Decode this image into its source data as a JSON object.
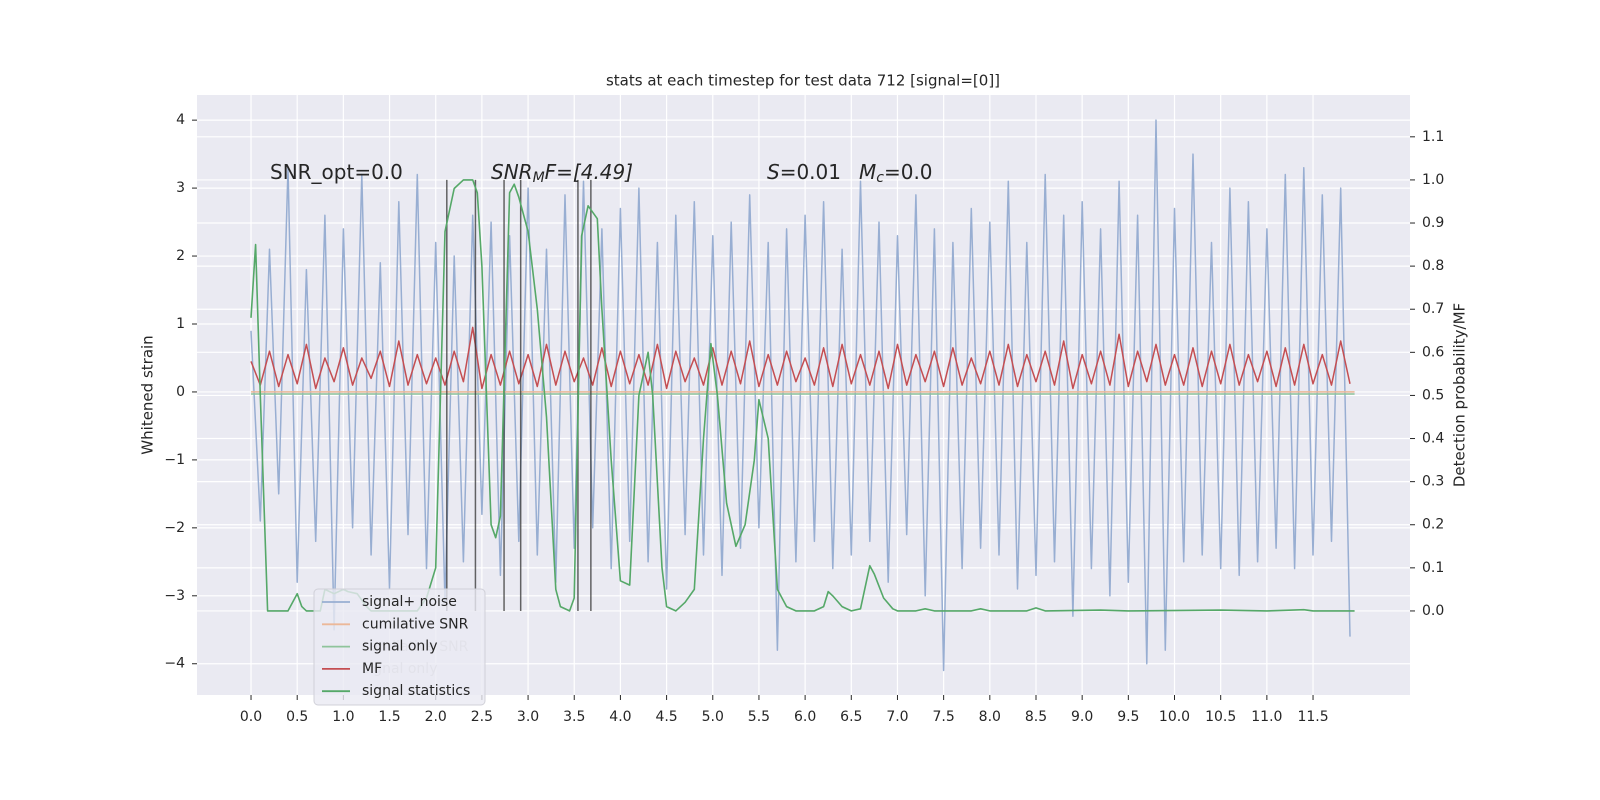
{
  "chart_data": {
    "type": "line",
    "title": "stats at each timestep for test data 712 [signal=[0]]",
    "ylabel": "Whitened strain",
    "y2label": "Detection probability/MF",
    "annotations": [
      [
        "SNR_opt=0.0"
      ],
      [
        "SNR",
        "M",
        "F=[4.49]"
      ],
      [
        "S",
        "=0.01"
      ],
      [
        "M",
        "c",
        "=0.0"
      ]
    ],
    "xlim": [
      -0.585,
      12.55
    ],
    "ylim": [
      -4.46,
      4.37
    ],
    "y2lim": [
      -0.195,
      1.197
    ],
    "xticks": [
      {
        "value": 0,
        "label": "0.0"
      },
      0.5,
      {
        "value": 1,
        "label": "1.0"
      },
      1.5,
      {
        "value": 2,
        "label": "2.0"
      },
      2.5,
      {
        "value": 3,
        "label": "3.0"
      },
      3.5,
      {
        "value": 4,
        "label": "4.0"
      },
      4.5,
      {
        "value": 5,
        "label": "5.0"
      },
      5.5,
      {
        "value": 6,
        "label": "6.0"
      },
      6.5,
      {
        "value": 7,
        "label": "7.0"
      },
      7.5,
      {
        "value": 8,
        "label": "8.0"
      },
      8.5,
      {
        "value": 9,
        "label": "9.0"
      },
      9.5,
      {
        "value": 10,
        "label": "10.0"
      },
      10.5,
      {
        "value": 11,
        "label": "11.0"
      },
      11.5
    ],
    "yticks": [
      {
        "value": -4,
        "label": "−4"
      },
      {
        "value": -3,
        "label": "−3"
      },
      {
        "value": -2,
        "label": "−2"
      },
      {
        "value": -1,
        "label": "−1"
      },
      0,
      1,
      2,
      3,
      4
    ],
    "y2ticks": [
      {
        "value": 0,
        "label": "0.0"
      },
      0.1,
      0.2,
      0.3,
      0.4,
      0.5,
      0.6,
      0.7,
      0.8,
      0.9,
      {
        "value": 1,
        "label": "1.0"
      },
      1.1
    ],
    "grid": true,
    "legend_position": "lower left",
    "background_legend": [
      "cumilative SNR",
      "signal only"
    ],
    "x": [
      0,
      0.1,
      0.2,
      0.3,
      0.4,
      0.5,
      0.6,
      0.7,
      0.8,
      0.9,
      1,
      1.1,
      1.2,
      1.3,
      1.4,
      1.5,
      1.6,
      1.7,
      1.8,
      1.9,
      2,
      2.1,
      2.2,
      2.3,
      2.4,
      2.5,
      2.6,
      2.7,
      2.8,
      2.9,
      3,
      3.1,
      3.2,
      3.3,
      3.4,
      3.5,
      3.6,
      3.7,
      3.8,
      3.9,
      4,
      4.1,
      4.2,
      4.3,
      4.4,
      4.5,
      4.6,
      4.7,
      4.8,
      4.9,
      5,
      5.1,
      5.2,
      5.3,
      5.4,
      5.5,
      5.6,
      5.7,
      5.8,
      5.9,
      6,
      6.1,
      6.2,
      6.3,
      6.4,
      6.5,
      6.6,
      6.7,
      6.8,
      6.9,
      7,
      7.1,
      7.2,
      7.3,
      7.4,
      7.5,
      7.6,
      7.7,
      7.8,
      7.9,
      8,
      8.1,
      8.2,
      8.3,
      8.4,
      8.5,
      8.6,
      8.7,
      8.8,
      8.9,
      9,
      9.1,
      9.2,
      9.3,
      9.4,
      9.5,
      9.6,
      9.7,
      9.8,
      9.9,
      10,
      10.1,
      10.2,
      10.3,
      10.4,
      10.5,
      10.6,
      10.7,
      10.8,
      10.9,
      11,
      11.1,
      11.2,
      11.3,
      11.4,
      11.5,
      11.6,
      11.7,
      11.8,
      11.9
    ],
    "series": [
      {
        "name": "signal+ noise",
        "color": "#98aed2",
        "values": [
          0.9,
          -1.9,
          2.1,
          -1.5,
          3.3,
          -2.8,
          1.8,
          -2.2,
          2.6,
          -3.5,
          2.4,
          -2.0,
          3.2,
          -2.4,
          1.9,
          -2.9,
          2.8,
          -2.1,
          3.2,
          -2.6,
          2.2,
          -3.1,
          2.0,
          -2.5,
          2.6,
          -1.8,
          2.5,
          -2.7,
          2.3,
          -2.2,
          3.0,
          -2.4,
          2.1,
          -2.8,
          2.9,
          -2.3,
          3.1,
          -2.0,
          2.4,
          -2.6,
          2.7,
          -2.2,
          3.0,
          -2.5,
          2.2,
          -2.9,
          2.6,
          -2.1,
          2.8,
          -2.4,
          2.3,
          -2.7,
          2.5,
          -2.3,
          2.9,
          -2.0,
          2.2,
          -3.8,
          2.4,
          -2.5,
          2.6,
          -2.2,
          2.8,
          -2.6,
          2.1,
          -2.4,
          3.1,
          -2.2,
          2.5,
          -2.8,
          2.3,
          -2.1,
          2.9,
          -3.0,
          2.4,
          -4.1,
          2.2,
          -2.6,
          2.7,
          -2.3,
          2.5,
          -2.4,
          3.1,
          -2.9,
          2.2,
          -2.7,
          3.2,
          -2.5,
          2.6,
          -3.3,
          2.8,
          -2.6,
          2.4,
          -3.0,
          3.1,
          -2.8,
          2.6,
          -4.0,
          4.0,
          -3.8,
          2.7,
          -2.5,
          3.5,
          -2.4,
          2.2,
          -2.6,
          3.0,
          -2.7,
          2.8,
          -2.5,
          2.4,
          -2.3,
          3.2,
          -2.6,
          3.3,
          -2.4,
          2.9,
          -2.2,
          3.0,
          -3.6
        ]
      },
      {
        "name": "cumilative SNR",
        "color": "#ecb899",
        "x": [
          0,
          11.95
        ],
        "values": [
          0,
          0
        ]
      },
      {
        "name": "signal only",
        "color": "#8fc49b",
        "x": [
          0,
          11.95
        ],
        "values": [
          -0.03,
          -0.03
        ]
      },
      {
        "name": "MF",
        "color": "#c44e52",
        "values": [
          0.45,
          0.1,
          0.6,
          0.08,
          0.55,
          0.12,
          0.7,
          0.05,
          0.5,
          0.15,
          0.65,
          0.1,
          0.5,
          0.2,
          0.6,
          0.08,
          0.75,
          0.1,
          0.55,
          0.12,
          0.5,
          0.1,
          0.6,
          0.15,
          0.95,
          0.05,
          0.55,
          0.1,
          0.6,
          0.12,
          0.55,
          0.08,
          0.7,
          0.1,
          0.6,
          0.15,
          0.5,
          0.1,
          0.65,
          0.08,
          0.6,
          0.12,
          0.55,
          0.1,
          0.7,
          0.05,
          0.6,
          0.15,
          0.5,
          0.1,
          0.65,
          0.1,
          0.6,
          0.12,
          0.75,
          0.08,
          0.55,
          0.1,
          0.6,
          0.15,
          0.5,
          0.1,
          0.65,
          0.08,
          0.7,
          0.12,
          0.55,
          0.1,
          0.6,
          0.05,
          0.7,
          0.1,
          0.55,
          0.15,
          0.6,
          0.08,
          0.65,
          0.1,
          0.5,
          0.12,
          0.6,
          0.1,
          0.7,
          0.08,
          0.55,
          0.15,
          0.6,
          0.1,
          0.75,
          0.05,
          0.55,
          0.12,
          0.6,
          0.1,
          0.85,
          0.08,
          0.6,
          0.15,
          0.7,
          0.1,
          0.55,
          0.1,
          0.65,
          0.08,
          0.6,
          0.12,
          0.7,
          0.1,
          0.55,
          0.15,
          0.6,
          0.08,
          0.65,
          0.1,
          0.7,
          0.12,
          0.55,
          0.1,
          0.75,
          0.12
        ]
      },
      {
        "name": "signal statistics",
        "color": "#55a868",
        "axis": "y2",
        "x": [
          0,
          0.05,
          0.1,
          0.18,
          0.3,
          0.4,
          0.5,
          0.55,
          0.6,
          0.75,
          0.8,
          0.9,
          1.0,
          1.05,
          1.15,
          1.25,
          1.3,
          1.8,
          1.9,
          2.0,
          2.1,
          2.2,
          2.3,
          2.4,
          2.45,
          2.5,
          2.55,
          2.6,
          2.65,
          2.7,
          2.75,
          2.8,
          2.85,
          2.9,
          3.0,
          3.1,
          3.2,
          3.3,
          3.35,
          3.45,
          3.5,
          3.58,
          3.65,
          3.75,
          3.8,
          3.9,
          4.0,
          4.1,
          4.2,
          4.3,
          4.35,
          4.45,
          4.5,
          4.6,
          4.7,
          4.8,
          4.9,
          4.98,
          5.05,
          5.15,
          5.25,
          5.35,
          5.45,
          5.5,
          5.6,
          5.7,
          5.8,
          5.9,
          6.1,
          6.2,
          6.25,
          6.3,
          6.4,
          6.5,
          6.6,
          6.7,
          6.75,
          6.85,
          6.95,
          7.0,
          7.2,
          7.3,
          7.4,
          7.8,
          7.9,
          8.0,
          8.4,
          8.5,
          8.6,
          9.2,
          9.5,
          10.5,
          11.0,
          11.4,
          11.5,
          11.95
        ],
        "values": [
          0.68,
          0.85,
          0.5,
          0.0,
          0.0,
          0.0,
          0.04,
          0.01,
          0.0,
          0.0,
          0.05,
          0.04,
          0.05,
          0.045,
          0.04,
          0.01,
          0.0,
          0.0,
          0.03,
          0.1,
          0.88,
          0.98,
          1.0,
          1.0,
          0.97,
          0.8,
          0.5,
          0.2,
          0.17,
          0.22,
          0.6,
          0.97,
          0.99,
          0.96,
          0.88,
          0.7,
          0.45,
          0.05,
          0.01,
          0.0,
          0.03,
          0.87,
          0.94,
          0.91,
          0.7,
          0.35,
          0.07,
          0.06,
          0.5,
          0.6,
          0.5,
          0.1,
          0.01,
          0.0,
          0.02,
          0.05,
          0.4,
          0.62,
          0.5,
          0.25,
          0.15,
          0.2,
          0.35,
          0.49,
          0.4,
          0.05,
          0.01,
          0.0,
          0.0,
          0.01,
          0.045,
          0.035,
          0.01,
          0.0,
          0.005,
          0.105,
          0.085,
          0.03,
          0.005,
          0.0,
          0.0,
          0.005,
          0.0,
          0.0,
          0.005,
          0.0,
          0.0,
          0.007,
          0.0,
          0.002,
          0.0,
          0.002,
          0.0,
          0.003,
          0.0,
          0.0
        ]
      }
    ],
    "vlines": [
      2.12,
      2.43,
      2.74,
      2.92,
      3.54,
      3.68
    ],
    "vline_range": [
      0,
      1
    ]
  }
}
